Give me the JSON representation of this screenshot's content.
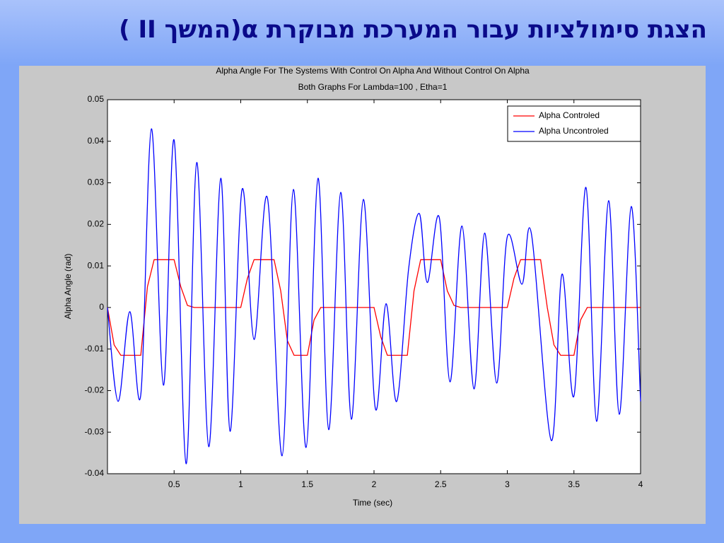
{
  "slide": {
    "title": "הצגת סימולציות עבור המערכת מבוקרת α(המשך II )"
  },
  "chart_data": {
    "type": "line",
    "title": "Alpha Angle For The Systems With Control On Alpha And Without Control On Alpha",
    "subtitle": "Both Graphs For Lambda=100 , Etha=1",
    "x_label": "Time (sec)",
    "y_label": "Alpha Angle (rad)",
    "xlim": [
      0,
      4
    ],
    "xticks": [
      0.5,
      1,
      1.5,
      2,
      2.5,
      3,
      3.5,
      4
    ],
    "ylim": [
      -0.04,
      0.05
    ],
    "yticks": [
      0.05,
      0.04,
      0.03,
      0.02,
      0.01,
      0,
      -0.01,
      -0.02,
      -0.03,
      -0.04
    ],
    "legend": "upper right",
    "series": [
      {
        "name": "Alpha Controled",
        "color": "#ff0000",
        "x": [
          0,
          0.05,
          0.1,
          0.25,
          0.3,
          0.35,
          0.5,
          0.55,
          0.6,
          0.65,
          1.0,
          1.05,
          1.1,
          1.25,
          1.3,
          1.35,
          1.4,
          1.5,
          1.55,
          1.6,
          2.0,
          2.05,
          2.1,
          2.25,
          2.3,
          2.35,
          2.5,
          2.55,
          2.6,
          2.65,
          3.0,
          3.05,
          3.1,
          3.25,
          3.3,
          3.35,
          3.4,
          3.5,
          3.55,
          3.6,
          4
        ],
        "values": [
          0,
          -0.009,
          -0.0115,
          -0.0115,
          0.005,
          0.0115,
          0.0115,
          0.005,
          0.0005,
          0,
          0,
          0.007,
          0.0115,
          0.0115,
          0.004,
          -0.008,
          -0.0115,
          -0.0115,
          -0.003,
          0,
          0,
          -0.007,
          -0.0115,
          -0.0115,
          0.004,
          0.0115,
          0.0115,
          0.004,
          0.0005,
          0,
          0,
          0.007,
          0.0115,
          0.0115,
          0,
          -0.009,
          -0.0115,
          -0.0115,
          -0.003,
          0,
          0
        ]
      },
      {
        "name": "Alpha Uncontroled",
        "color": "#0000ff",
        "x": [
          0,
          0.08,
          0.167,
          0.25,
          0.33,
          0.42,
          0.5,
          0.59,
          0.67,
          0.76,
          0.85,
          0.92,
          1.01,
          1.1,
          1.2,
          1.31,
          1.395,
          1.49,
          1.58,
          1.66,
          1.75,
          1.83,
          1.92,
          2.01,
          2.09,
          2.17,
          2.26,
          2.34,
          2.4,
          2.49,
          2.57,
          2.66,
          2.75,
          2.83,
          2.92,
          3.0,
          3.11,
          3.18,
          3.33,
          3.41,
          3.5,
          3.59,
          3.67,
          3.76,
          3.84,
          3.93,
          4.0
        ],
        "values": [
          0,
          -0.0226,
          -0.001,
          -0.021,
          0.043,
          -0.0187,
          0.0403,
          -0.0376,
          0.0349,
          -0.0335,
          0.0311,
          -0.0298,
          0.0284,
          -0.0077,
          0.0264,
          -0.0357,
          0.0284,
          -0.0337,
          0.0311,
          -0.0294,
          0.0277,
          -0.0269,
          0.026,
          -0.0243,
          0.0009,
          -0.0226,
          0.0094,
          0.0226,
          0.006,
          0.0216,
          -0.0179,
          0.0196,
          -0.0196,
          0.0179,
          -0.0182,
          0.017,
          0.0056,
          0.0179,
          -0.032,
          0.008,
          -0.0213,
          0.0289,
          -0.0274,
          0.0257,
          -0.0257,
          0.0243,
          -0.0226
        ]
      }
    ]
  }
}
